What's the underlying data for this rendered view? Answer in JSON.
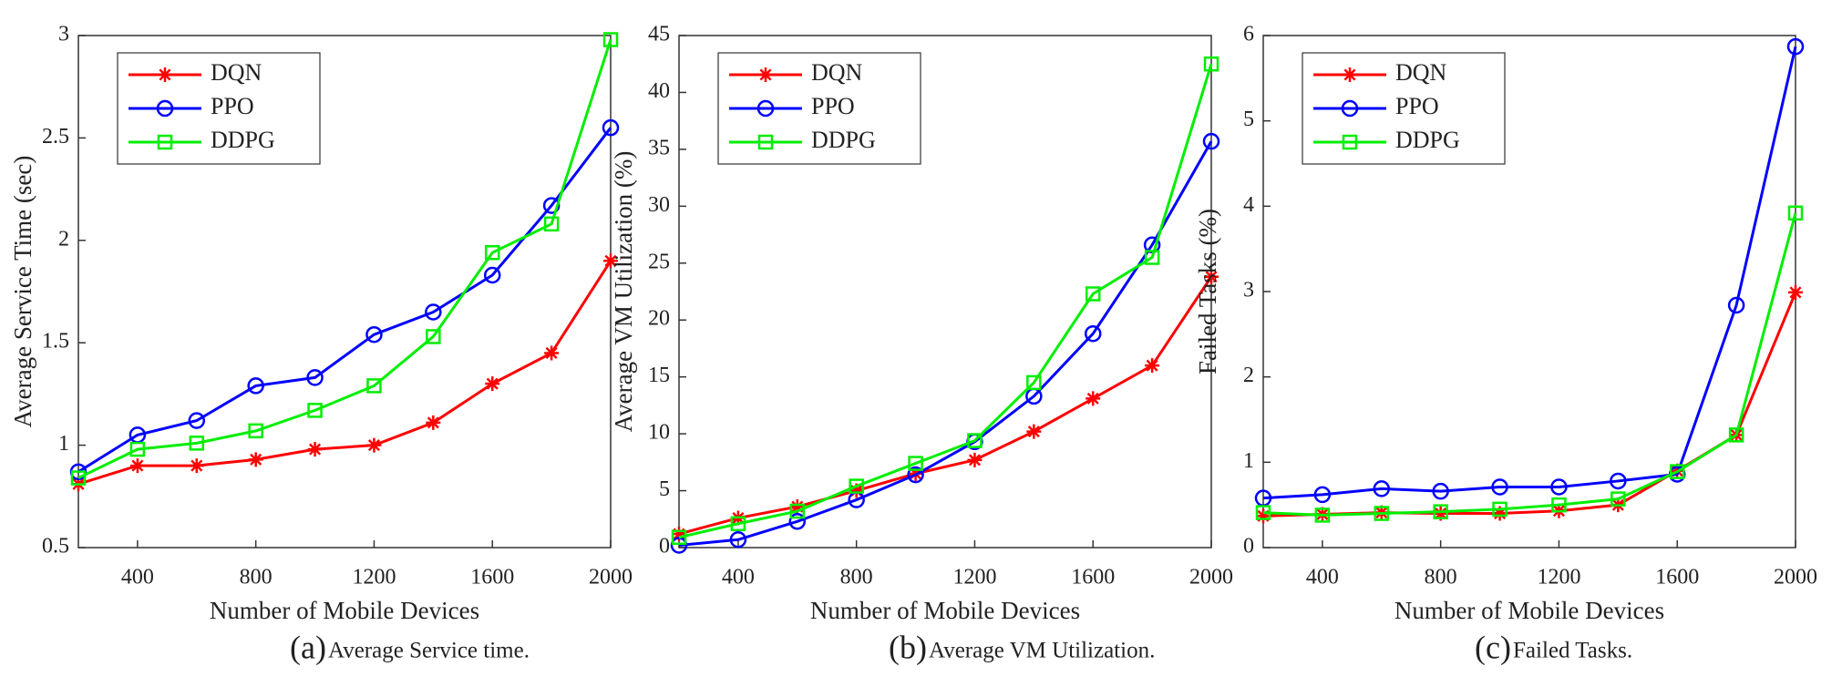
{
  "chart_data": [
    {
      "type": "line",
      "subfigure_label": "(a)",
      "caption": "Average Service time.",
      "xlabel": "Number of Mobile Devices",
      "ylabel": "Average Service Time (sec)",
      "x": [
        200,
        400,
        600,
        800,
        1000,
        1200,
        1400,
        1600,
        1800,
        2000
      ],
      "xlim": [
        200,
        2000
      ],
      "xticks": [
        400,
        800,
        1200,
        1600,
        2000
      ],
      "ylim": [
        0.5,
        3
      ],
      "yticks": [
        0.5,
        1,
        1.5,
        2,
        2.5,
        3
      ],
      "legend": "upper left",
      "series": [
        {
          "name": "DQN",
          "color": "#ff0000",
          "marker": "star",
          "values": [
            0.81,
            0.9,
            0.9,
            0.93,
            0.98,
            1.0,
            1.11,
            1.3,
            1.45,
            1.9
          ]
        },
        {
          "name": "PPO",
          "color": "#0000ff",
          "marker": "circle",
          "values": [
            0.87,
            1.05,
            1.12,
            1.29,
            1.33,
            1.54,
            1.65,
            1.83,
            2.17,
            2.55
          ]
        },
        {
          "name": "DDPG",
          "color": "#00ee00",
          "marker": "square",
          "values": [
            0.84,
            0.98,
            1.01,
            1.07,
            1.17,
            1.29,
            1.53,
            1.94,
            2.08,
            2.98
          ]
        }
      ]
    },
    {
      "type": "line",
      "subfigure_label": "(b)",
      "caption": "Average VM Utilization.",
      "xlabel": "Number of Mobile Devices",
      "ylabel": "Average VM Utilization (%)",
      "x": [
        200,
        400,
        600,
        800,
        1000,
        1200,
        1400,
        1600,
        1800,
        2000
      ],
      "xlim": [
        200,
        2000
      ],
      "xticks": [
        400,
        800,
        1200,
        1600,
        2000
      ],
      "ylim": [
        0,
        45
      ],
      "yticks": [
        0,
        5,
        10,
        15,
        20,
        25,
        30,
        35,
        40,
        45
      ],
      "legend": "upper left",
      "series": [
        {
          "name": "DQN",
          "color": "#ff0000",
          "marker": "star",
          "values": [
            1.2,
            2.6,
            3.6,
            5.0,
            6.5,
            7.7,
            10.2,
            13.1,
            16.0,
            23.8
          ]
        },
        {
          "name": "PPO",
          "color": "#0000ff",
          "marker": "circle",
          "values": [
            0.2,
            0.7,
            2.3,
            4.2,
            6.4,
            9.3,
            13.3,
            18.8,
            26.6,
            35.7
          ]
        },
        {
          "name": "DDPG",
          "color": "#00ee00",
          "marker": "square",
          "values": [
            0.9,
            2.1,
            3.2,
            5.4,
            7.4,
            9.4,
            14.5,
            22.3,
            25.5,
            42.5
          ]
        }
      ]
    },
    {
      "type": "line",
      "subfigure_label": "(c)",
      "caption": "Failed Tasks.",
      "xlabel": "Number of Mobile Devices",
      "ylabel": "Failed Tasks (%)",
      "x": [
        200,
        400,
        600,
        800,
        1000,
        1200,
        1400,
        1600,
        1800,
        2000
      ],
      "xlim": [
        200,
        2000
      ],
      "xticks": [
        400,
        800,
        1200,
        1600,
        2000
      ],
      "ylim": [
        0,
        6
      ],
      "yticks": [
        0,
        1,
        2,
        3,
        4,
        5,
        6
      ],
      "legend": "upper left",
      "series": [
        {
          "name": "DQN",
          "color": "#ff0000",
          "marker": "star",
          "values": [
            0.37,
            0.39,
            0.41,
            0.4,
            0.4,
            0.43,
            0.5,
            0.9,
            1.32,
            2.99
          ]
        },
        {
          "name": "PPO",
          "color": "#0000ff",
          "marker": "circle",
          "values": [
            0.58,
            0.62,
            0.69,
            0.66,
            0.71,
            0.71,
            0.78,
            0.86,
            2.84,
            5.87
          ]
        },
        {
          "name": "DDPG",
          "color": "#00ee00",
          "marker": "square",
          "values": [
            0.41,
            0.38,
            0.4,
            0.42,
            0.45,
            0.5,
            0.57,
            0.89,
            1.32,
            3.92
          ]
        }
      ]
    }
  ]
}
